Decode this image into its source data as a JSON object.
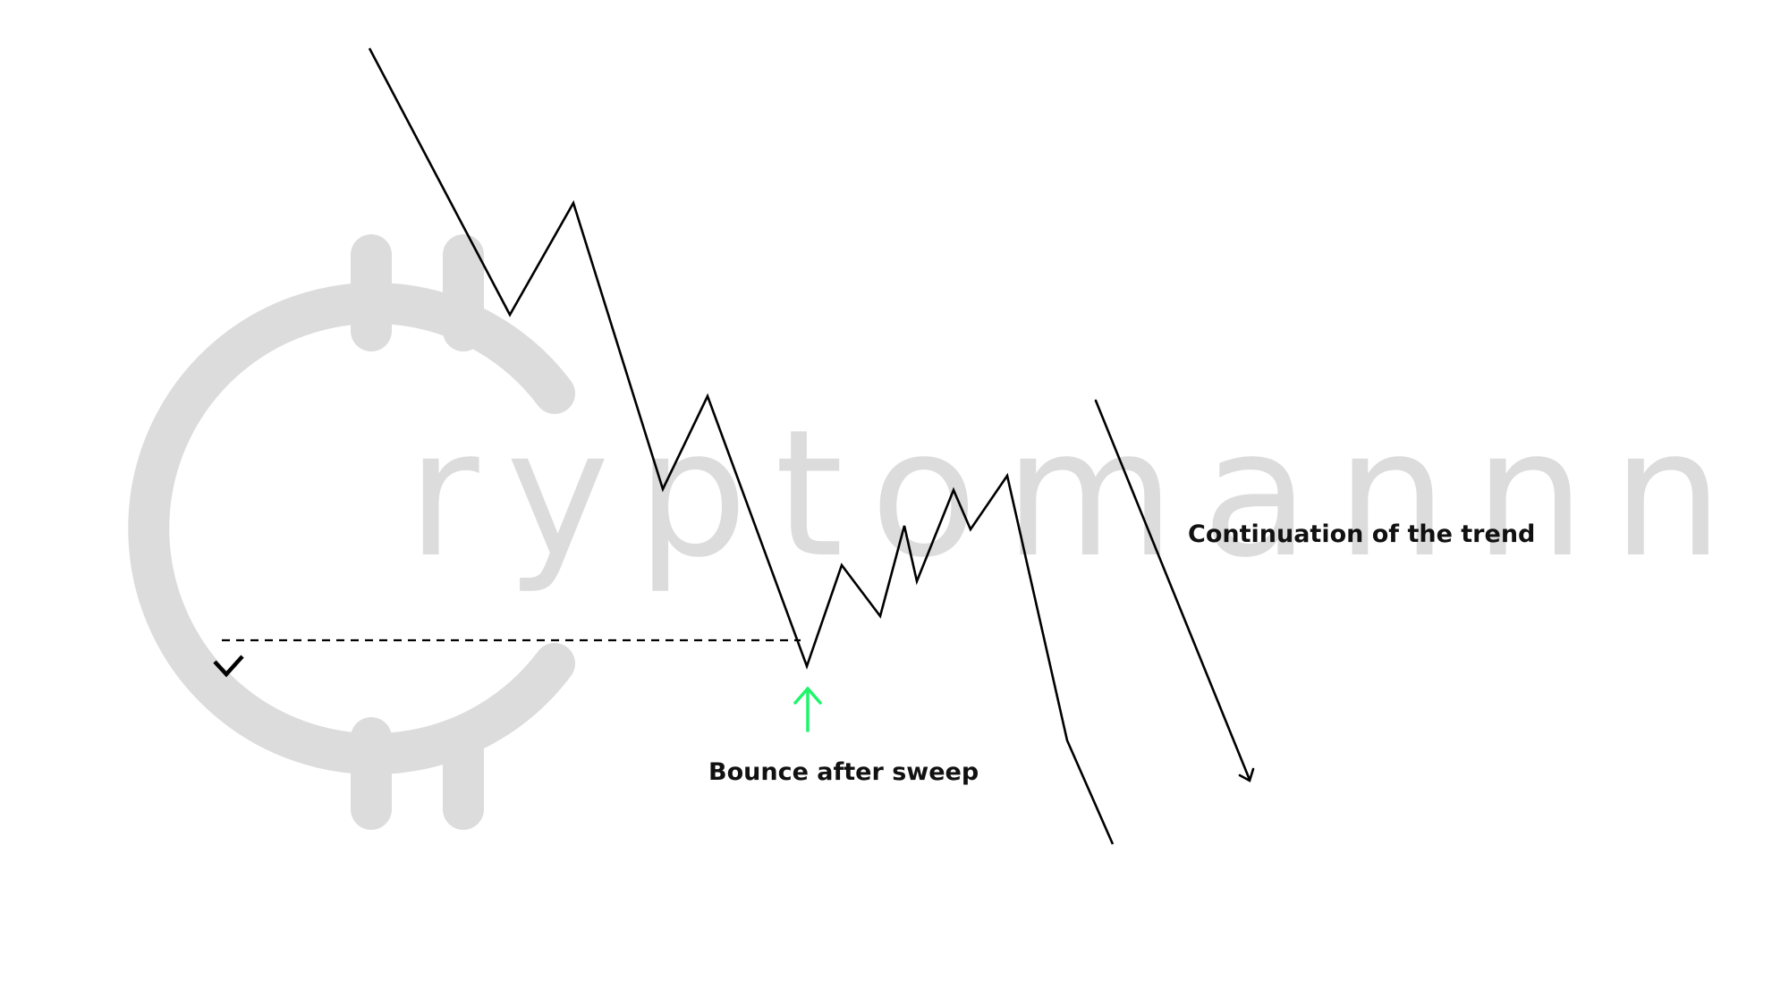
{
  "watermark": {
    "logo_lettering": "ryptomannn",
    "color": "#dcdcdc"
  },
  "annotations": {
    "continuation_label": "Continuation of the trend",
    "bounce_label": "Bounce after sweep"
  },
  "colors": {
    "price_line": "#000000",
    "bounce_arrow": "#1ef56a",
    "liquidity_line": "#000000",
    "checkmark": "#000000"
  },
  "icons": {
    "liquidity_marker": "checkmark-icon",
    "bounce_marker": "arrow-up-icon",
    "trend_marker": "arrow-down-icon"
  }
}
